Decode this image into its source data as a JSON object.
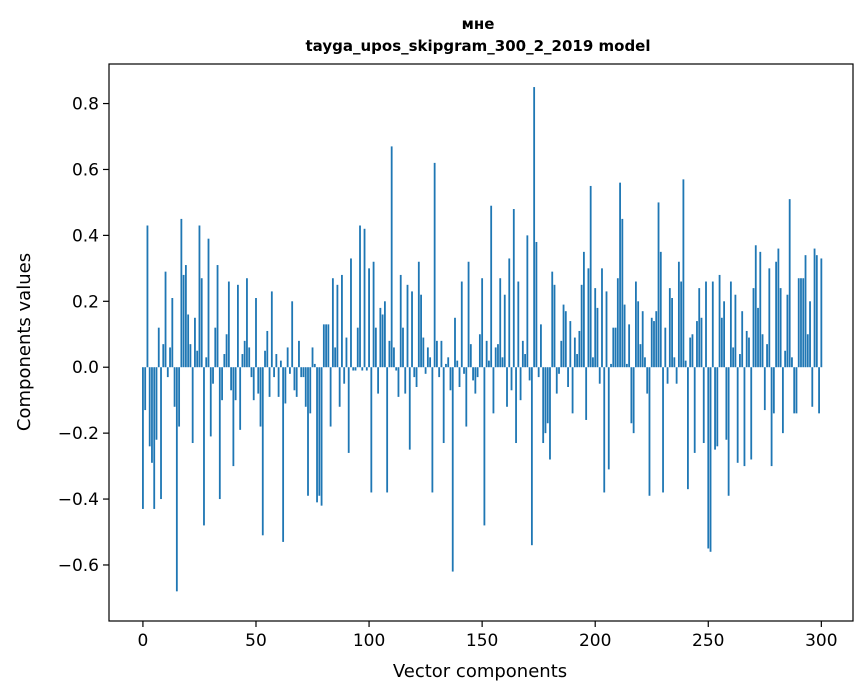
{
  "chart_data": {
    "type": "bar",
    "title_line1": "мне",
    "title_line2": "tayga_upos_skipgram_300_2_2019 model",
    "xlabel": "Vector components",
    "ylabel": "Components values",
    "xlim": [
      -15,
      314
    ],
    "ylim": [
      -0.77,
      0.92
    ],
    "x_ticks": [
      0,
      50,
      100,
      150,
      200,
      250,
      300
    ],
    "x_tick_labels": [
      "0",
      "50",
      "100",
      "150",
      "200",
      "250",
      "300"
    ],
    "y_ticks": [
      -0.6,
      -0.4,
      -0.2,
      0.0,
      0.2,
      0.4,
      0.6,
      0.8
    ],
    "y_tick_labels": [
      "−0.6",
      "−0.4",
      "−0.2",
      "0.0",
      "0.2",
      "0.4",
      "0.6",
      "0.8"
    ],
    "bar_color": "#1f77b4",
    "grid": false,
    "series": [
      {
        "name": "мне",
        "x_start": 0,
        "values": [
          -0.43,
          -0.13,
          0.43,
          -0.24,
          -0.29,
          -0.43,
          -0.22,
          0.12,
          -0.4,
          0.07,
          0.29,
          -0.03,
          0.06,
          0.21,
          -0.12,
          -0.68,
          -0.18,
          0.45,
          0.28,
          0.31,
          0.16,
          0.07,
          -0.23,
          0.15,
          0.05,
          0.43,
          0.27,
          -0.48,
          0.03,
          0.39,
          -0.21,
          -0.05,
          0.12,
          0.31,
          -0.4,
          -0.1,
          0.04,
          0.1,
          0.26,
          -0.07,
          -0.3,
          -0.1,
          0.25,
          -0.19,
          0.04,
          0.08,
          0.27,
          0.06,
          -0.03,
          -0.1,
          0.21,
          -0.08,
          -0.18,
          -0.51,
          0.05,
          0.11,
          -0.09,
          0.23,
          -0.03,
          0.04,
          -0.09,
          0.02,
          -0.53,
          -0.11,
          0.06,
          -0.02,
          0.2,
          -0.07,
          -0.09,
          0.08,
          -0.03,
          -0.03,
          -0.12,
          -0.39,
          -0.14,
          0.06,
          0.01,
          -0.41,
          -0.39,
          -0.42,
          0.13,
          0.13,
          0.13,
          -0.18,
          0.27,
          0.06,
          0.25,
          -0.12,
          0.28,
          -0.05,
          0.09,
          -0.26,
          0.33,
          -0.01,
          -0.01,
          0.12,
          0.43,
          -0.01,
          0.42,
          -0.01,
          0.3,
          -0.38,
          0.32,
          0.12,
          -0.08,
          0.18,
          0.16,
          0.2,
          -0.38,
          0.08,
          0.67,
          0.06,
          -0.01,
          -0.09,
          0.28,
          0.12,
          -0.08,
          0.25,
          -0.25,
          0.23,
          -0.03,
          -0.06,
          0.32,
          0.22,
          0.09,
          -0.02,
          0.06,
          0.03,
          -0.38,
          0.62,
          0.08,
          -0.03,
          0.08,
          -0.23,
          0.01,
          0.03,
          -0.07,
          -0.62,
          0.15,
          0.02,
          -0.06,
          0.26,
          -0.02,
          -0.18,
          0.32,
          0.07,
          -0.04,
          -0.08,
          -0.03,
          0.1,
          0.27,
          -0.48,
          0.08,
          0.02,
          0.49,
          -0.14,
          0.06,
          0.07,
          0.27,
          0.03,
          0.22,
          -0.12,
          0.33,
          -0.07,
          0.48,
          -0.23,
          0.26,
          -0.1,
          0.08,
          0.04,
          0.4,
          -0.04,
          -0.54,
          0.85,
          0.38,
          -0.03,
          0.13,
          -0.23,
          -0.2,
          -0.17,
          -0.28,
          0.29,
          0.25,
          -0.08,
          -0.02,
          0.08,
          0.19,
          0.17,
          -0.06,
          0.14,
          -0.14,
          0.09,
          0.04,
          0.11,
          0.25,
          0.35,
          -0.16,
          0.3,
          0.55,
          0.03,
          0.24,
          0.18,
          -0.05,
          0.3,
          -0.38,
          0.23,
          -0.31,
          0.01,
          0.12,
          0.12,
          0.27,
          0.56,
          0.45,
          0.19,
          0.01,
          0.13,
          -0.17,
          -0.2,
          0.26,
          0.2,
          0.07,
          0.17,
          0.03,
          -0.08,
          -0.39,
          0.15,
          0.14,
          0.17,
          0.5,
          0.35,
          -0.38,
          0.12,
          -0.05,
          0.24,
          0.21,
          0.03,
          -0.05,
          0.32,
          0.26,
          0.57,
          0.02,
          -0.37,
          0.09,
          0.1,
          -0.26,
          0.14,
          0.24,
          0.15,
          -0.23,
          0.26,
          -0.55,
          -0.56,
          0.26,
          -0.25,
          -0.24,
          0.28,
          0.15,
          0.2,
          -0.22,
          -0.39,
          0.26,
          0.06,
          0.22,
          -0.29,
          0.04,
          0.17,
          -0.3,
          0.11,
          0.09,
          -0.28,
          0.24,
          0.37,
          0.18,
          0.35,
          0.1,
          -0.13,
          0.07,
          0.3,
          -0.3,
          -0.14,
          0.32,
          0.36,
          0.24,
          -0.2,
          0.05,
          0.22,
          0.51,
          0.03,
          -0.14,
          -0.14,
          0.27,
          0.27,
          0.27,
          0.34,
          0.1,
          0.2,
          -0.12,
          0.36,
          0.34,
          -0.14,
          0.33
        ]
      }
    ]
  }
}
